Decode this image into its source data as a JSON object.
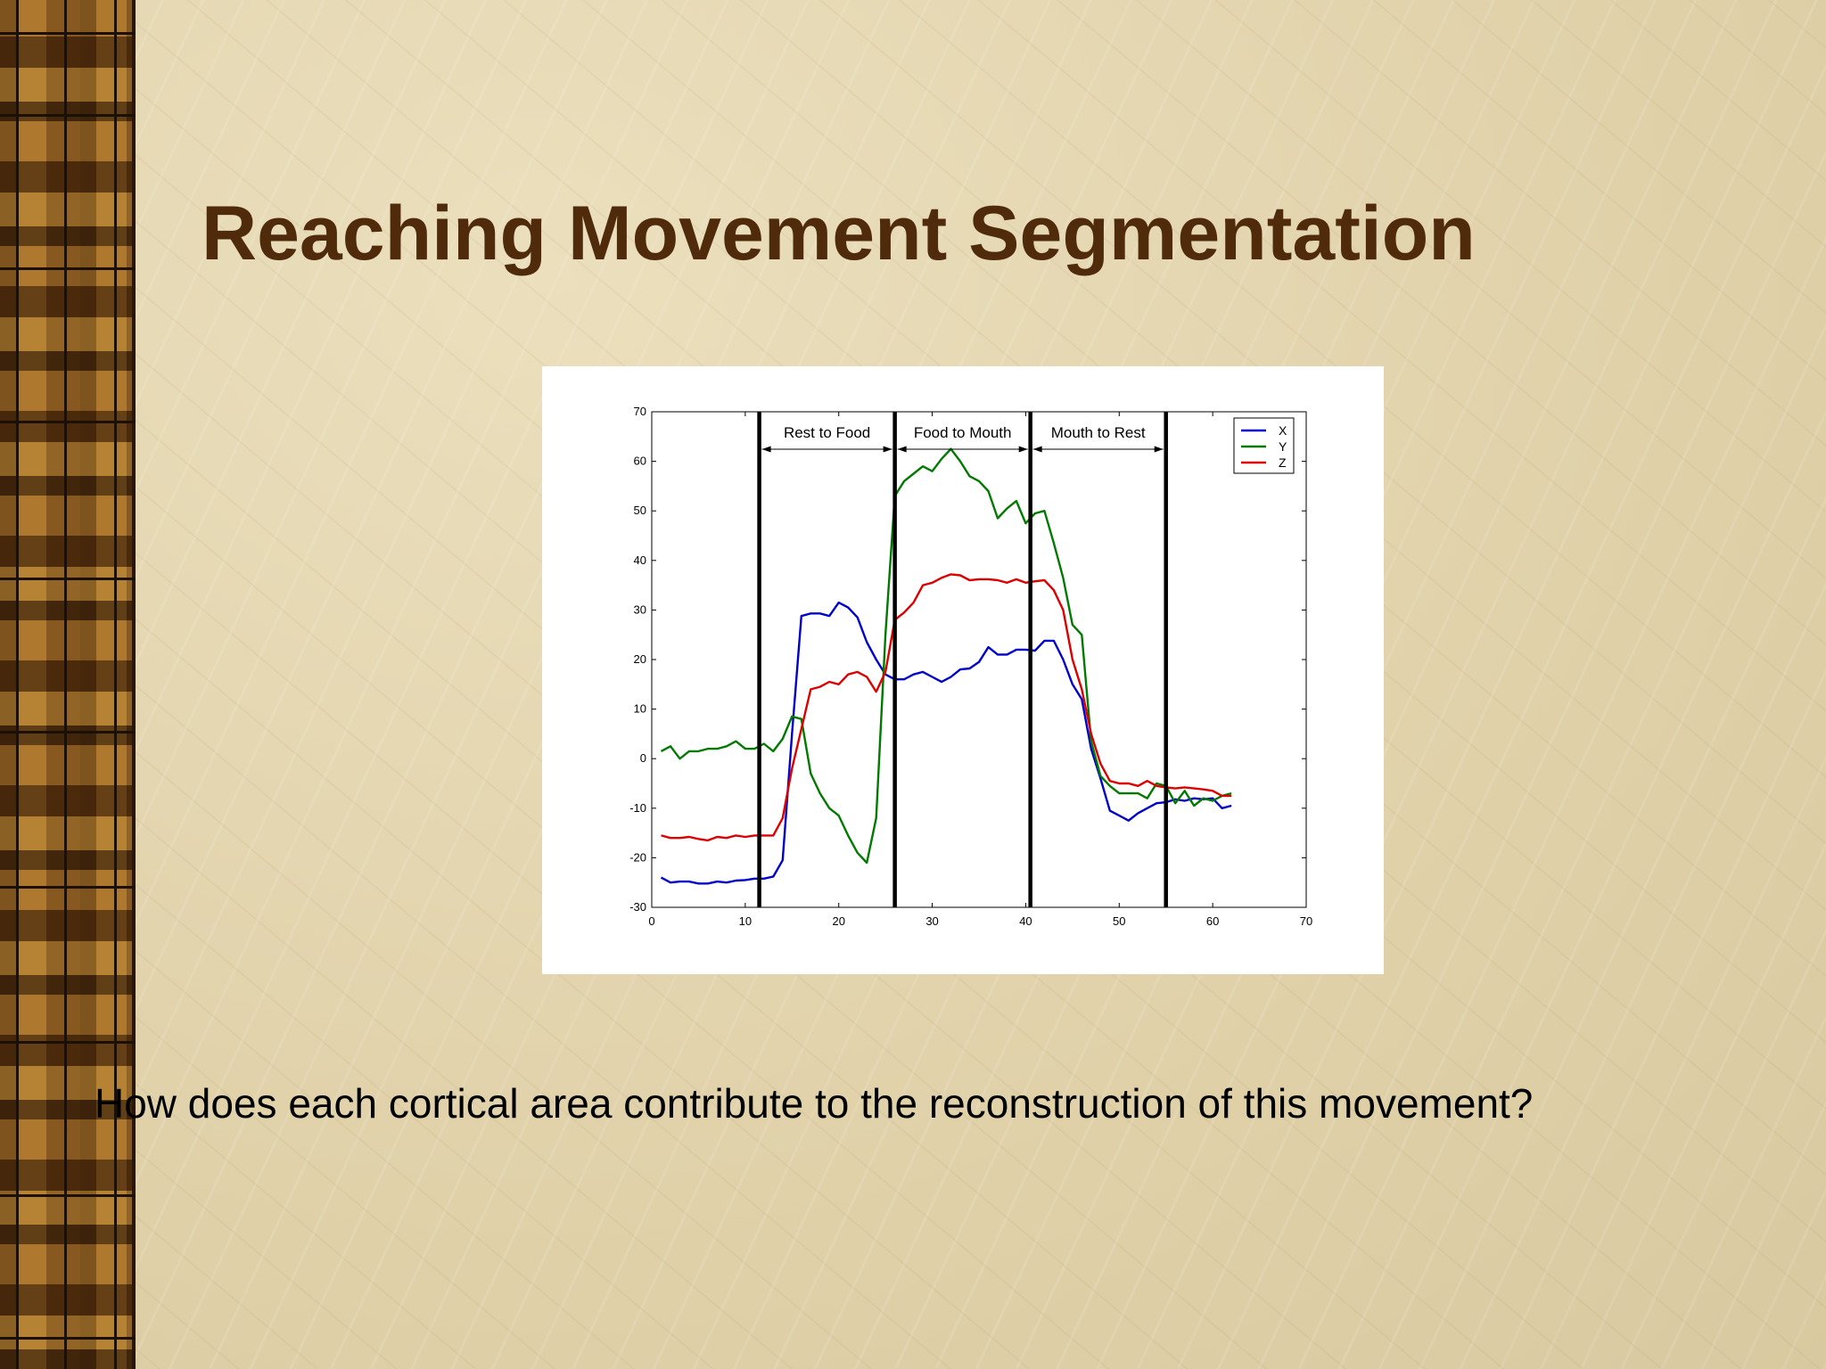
{
  "slide": {
    "title": "Reaching Movement Segmentation",
    "caption": "How does each cortical area contribute to the reconstruction of this movement?"
  },
  "chart_data": {
    "type": "line",
    "title": "",
    "xlabel": "",
    "ylabel": "",
    "xlim": [
      0,
      70
    ],
    "ylim": [
      -30,
      70
    ],
    "x_ticks": [
      0,
      10,
      20,
      30,
      40,
      50,
      60,
      70
    ],
    "y_ticks": [
      -30,
      -20,
      -10,
      0,
      10,
      20,
      30,
      40,
      50,
      60,
      70
    ],
    "grid": false,
    "legend_position": "top-right",
    "x": [
      1,
      2,
      3,
      4,
      5,
      6,
      7,
      8,
      9,
      10,
      11,
      12,
      13,
      14,
      15,
      16,
      17,
      18,
      19,
      20,
      21,
      22,
      23,
      24,
      25,
      26,
      27,
      28,
      29,
      30,
      31,
      32,
      33,
      34,
      35,
      36,
      37,
      38,
      39,
      40,
      41,
      42,
      43,
      44,
      45,
      46,
      47,
      48,
      49,
      50,
      51,
      52,
      53,
      54,
      55,
      56,
      57,
      58,
      59,
      60,
      61,
      62
    ],
    "series": [
      {
        "name": "X",
        "color": "#0000cc",
        "values": [
          -24,
          -25,
          -24.8,
          -24.8,
          -25.2,
          -25.2,
          -24.8,
          -25,
          -24.6,
          -24.5,
          -24.2,
          -24.2,
          -23.8,
          -20.5,
          5,
          28.8,
          29.3,
          29.3,
          28.8,
          31.5,
          30.5,
          28.5,
          23.5,
          20,
          17,
          16,
          16,
          17,
          17.5,
          16.5,
          15.5,
          16.5,
          18,
          18.2,
          19.5,
          22.5,
          21,
          21,
          22,
          22,
          21.8,
          23.8,
          23.8,
          20,
          15,
          12,
          2,
          -4,
          -10.5,
          -11.5,
          -12.5,
          -11,
          -10,
          -9,
          -8.8,
          -8.2,
          -8.5,
          -8,
          -8.2,
          -8,
          -10,
          -9.5
        ]
      },
      {
        "name": "Y",
        "color": "#007a00",
        "values": [
          1.5,
          2.5,
          0,
          1.5,
          1.5,
          2,
          2,
          2.5,
          3.5,
          2,
          2,
          3,
          1.5,
          4,
          8.5,
          8,
          -3,
          -7,
          -10,
          -11.5,
          -15.5,
          -19,
          -21,
          -12,
          25,
          53,
          56,
          57.5,
          59,
          58,
          60.5,
          62.5,
          60,
          57,
          56,
          54,
          48.5,
          50.5,
          52,
          47.5,
          49.5,
          50,
          43.5,
          36.5,
          27,
          25,
          3.5,
          -3.5,
          -5.5,
          -7,
          -7,
          -7,
          -8,
          -5,
          -5.5,
          -9,
          -6.5,
          -9.5,
          -8,
          -8.5,
          -7.5,
          -7
        ]
      },
      {
        "name": "Z",
        "color": "#dd0000",
        "values": [
          -15.5,
          -16,
          -16,
          -15.8,
          -16.2,
          -16.5,
          -15.8,
          -16,
          -15.5,
          -15.8,
          -15.5,
          -15.5,
          -15.5,
          -12,
          -2,
          6,
          14,
          14.5,
          15.5,
          15,
          17,
          17.5,
          16.5,
          13.5,
          17.5,
          28,
          29.5,
          31.5,
          35,
          35.5,
          36.5,
          37.2,
          37,
          36,
          36.2,
          36.2,
          36,
          35.5,
          36.2,
          35.5,
          35.8,
          36,
          34,
          30,
          20,
          14,
          5,
          -1,
          -4.5,
          -5,
          -5,
          -5.5,
          -4.5,
          -5.5,
          -5.8,
          -6,
          -5.8,
          -6,
          -6.2,
          -6.5,
          -7.5,
          -7.5
        ]
      }
    ],
    "segment_boundaries": [
      11.5,
      26,
      40.5,
      55
    ],
    "segments": [
      {
        "label": "Rest to Food",
        "x_start": 11.5,
        "x_end": 26
      },
      {
        "label": "Food to Mouth",
        "x_start": 26,
        "x_end": 40.5
      },
      {
        "label": "Mouth to Rest",
        "x_start": 40.5,
        "x_end": 55
      }
    ]
  }
}
